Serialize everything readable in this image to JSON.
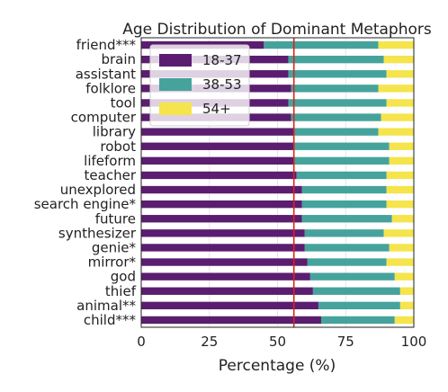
{
  "chart_data": {
    "type": "bar",
    "orientation": "horizontal",
    "stacked": true,
    "title": "Age Distribution of Dominant Metaphors",
    "xlabel": "Percentage (%)",
    "ylabel": "",
    "xlim": [
      0,
      100
    ],
    "xticks": [
      "0",
      "25",
      "50",
      "75",
      "100"
    ],
    "grid": "vertical",
    "legend_placement": "top-left",
    "reference_line": {
      "x": 56,
      "color": "#e0201b"
    },
    "categories": [
      "friend***",
      "brain",
      "assistant",
      "folklore",
      "tool",
      "computer",
      "library",
      "robot",
      "lifeform",
      "teacher",
      "unexplored",
      "search engine*",
      "future",
      "synthesizer",
      "genie*",
      "mirror*",
      "god",
      "thief",
      "animal**",
      "child***"
    ],
    "series": [
      {
        "name": "18-37",
        "color": "#5b1d6f",
        "values": [
          45,
          54,
          54,
          55,
          54,
          55,
          56,
          56,
          56,
          57,
          59,
          59,
          59,
          60,
          60,
          61,
          62,
          63,
          65,
          66
        ]
      },
      {
        "name": "38-53",
        "color": "#46a39c",
        "values": [
          42,
          35,
          36,
          32,
          36,
          33,
          31,
          35,
          35,
          33,
          31,
          31,
          33,
          29,
          31,
          29,
          31,
          32,
          30,
          27
        ]
      },
      {
        "name": "54+",
        "color": "#f5e44b",
        "values": [
          13,
          11,
          10,
          13,
          10,
          12,
          13,
          9,
          9,
          10,
          10,
          10,
          8,
          11,
          9,
          10,
          7,
          5,
          5,
          7
        ]
      }
    ]
  }
}
